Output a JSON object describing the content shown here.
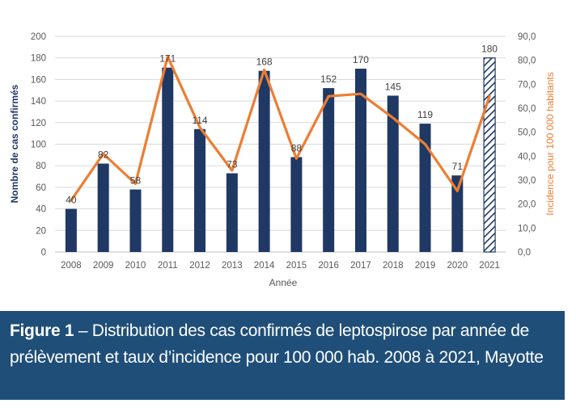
{
  "chart_data": {
    "type": "bar",
    "categories": [
      "2008",
      "2009",
      "2010",
      "2011",
      "2012",
      "2013",
      "2014",
      "2015",
      "2016",
      "2017",
      "2018",
      "2019",
      "2020",
      "2021"
    ],
    "series": [
      {
        "values": [
          40,
          82,
          58,
          171,
          114,
          73,
          168,
          88,
          152,
          170,
          145,
          119,
          71,
          180
        ],
        "labels": [
          "40",
          "82",
          "58",
          "171",
          "114",
          "73",
          "168",
          "88",
          "152",
          "170",
          "145",
          "119",
          "71",
          "180"
        ],
        "color": "#1f3864",
        "hatched_last": true,
        "axis": "left"
      },
      {
        "type": "line",
        "values": [
          21.5,
          41,
          28.5,
          81.5,
          52,
          34,
          76,
          39,
          65,
          66,
          56,
          45,
          25.5,
          65
        ],
        "color": "#ed7d31",
        "axis": "right"
      }
    ],
    "xlabel": "Année",
    "ylabel": "Nombre de cas confirmés",
    "y2label": "Incidence pour 100 000 habitants",
    "ylim": [
      0,
      200
    ],
    "y2lim": [
      0,
      90
    ],
    "yticks": [
      "0",
      "20",
      "40",
      "60",
      "80",
      "100",
      "120",
      "140",
      "160",
      "180",
      "200"
    ],
    "y2ticks": [
      "0,0",
      "10,0",
      "20,0",
      "30,0",
      "40,0",
      "50,0",
      "60,0",
      "70,0",
      "80,0",
      "90,0"
    ],
    "grid": true
  },
  "caption": {
    "figure_label": "Figure 1",
    "text": " – Distribution des cas confirmés de leptospirose par année de prélèvement et taux d’incidence pour 100 000 hab. 2008 à 2021, Mayotte",
    "background": "#1f4e79"
  }
}
